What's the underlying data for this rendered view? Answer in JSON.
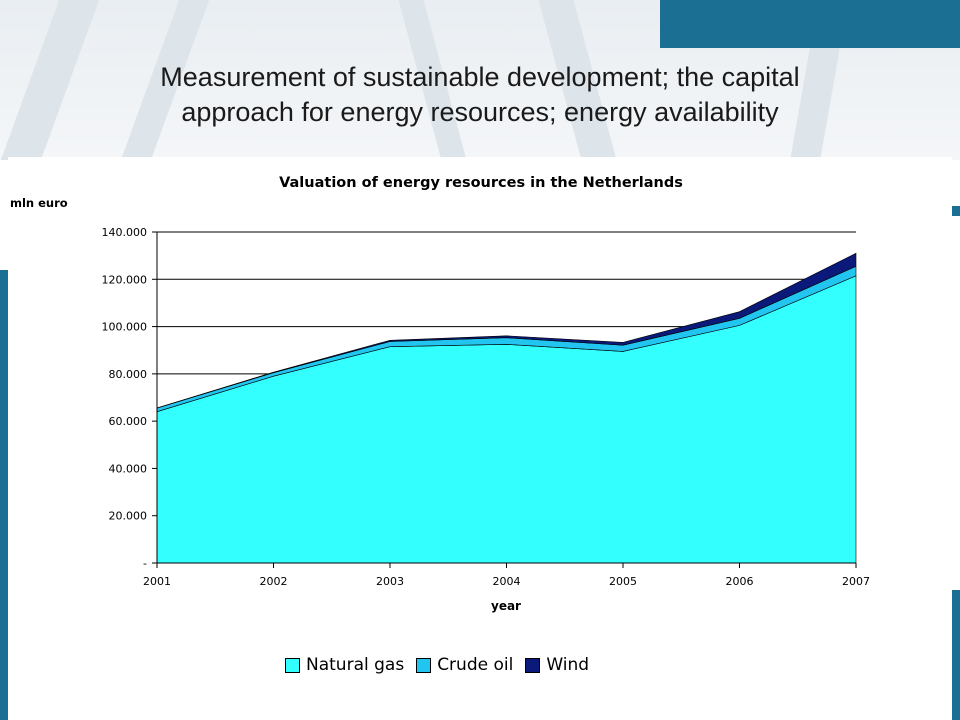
{
  "slide": {
    "title_line1": "Measurement of sustainable development; the capital",
    "title_line2": "approach for energy resources; energy availability"
  },
  "chart_data": {
    "type": "area",
    "stacked": true,
    "title": "Valuation of energy resources in the Netherlands",
    "ylabel": "mln euro",
    "xlabel": "year",
    "x": [
      "2001",
      "2002",
      "2003",
      "2004",
      "2005",
      "2006",
      "2007"
    ],
    "ylim": [
      0,
      140000
    ],
    "yticks": [
      0,
      20000,
      40000,
      60000,
      80000,
      100000,
      120000,
      140000
    ],
    "ytick_labels": [
      "-",
      "20.000",
      "40.000",
      "60.000",
      "80.000",
      "100.000",
      "120.000",
      "140.000"
    ],
    "grid": "horizontal",
    "legend_position": "bottom",
    "series": [
      {
        "name": "Natural gas",
        "color": "#33ffff",
        "values": [
          64000,
          79000,
          91500,
          92500,
          89500,
          100500,
          121500
        ]
      },
      {
        "name": "Crude oil",
        "color": "#22c4f0",
        "values": [
          1500,
          1500,
          2200,
          2800,
          2600,
          3000,
          4000
        ]
      },
      {
        "name": "Wind",
        "color": "#0b1a7a",
        "values": [
          100,
          200,
          500,
          800,
          1200,
          2800,
          5500
        ]
      }
    ]
  }
}
